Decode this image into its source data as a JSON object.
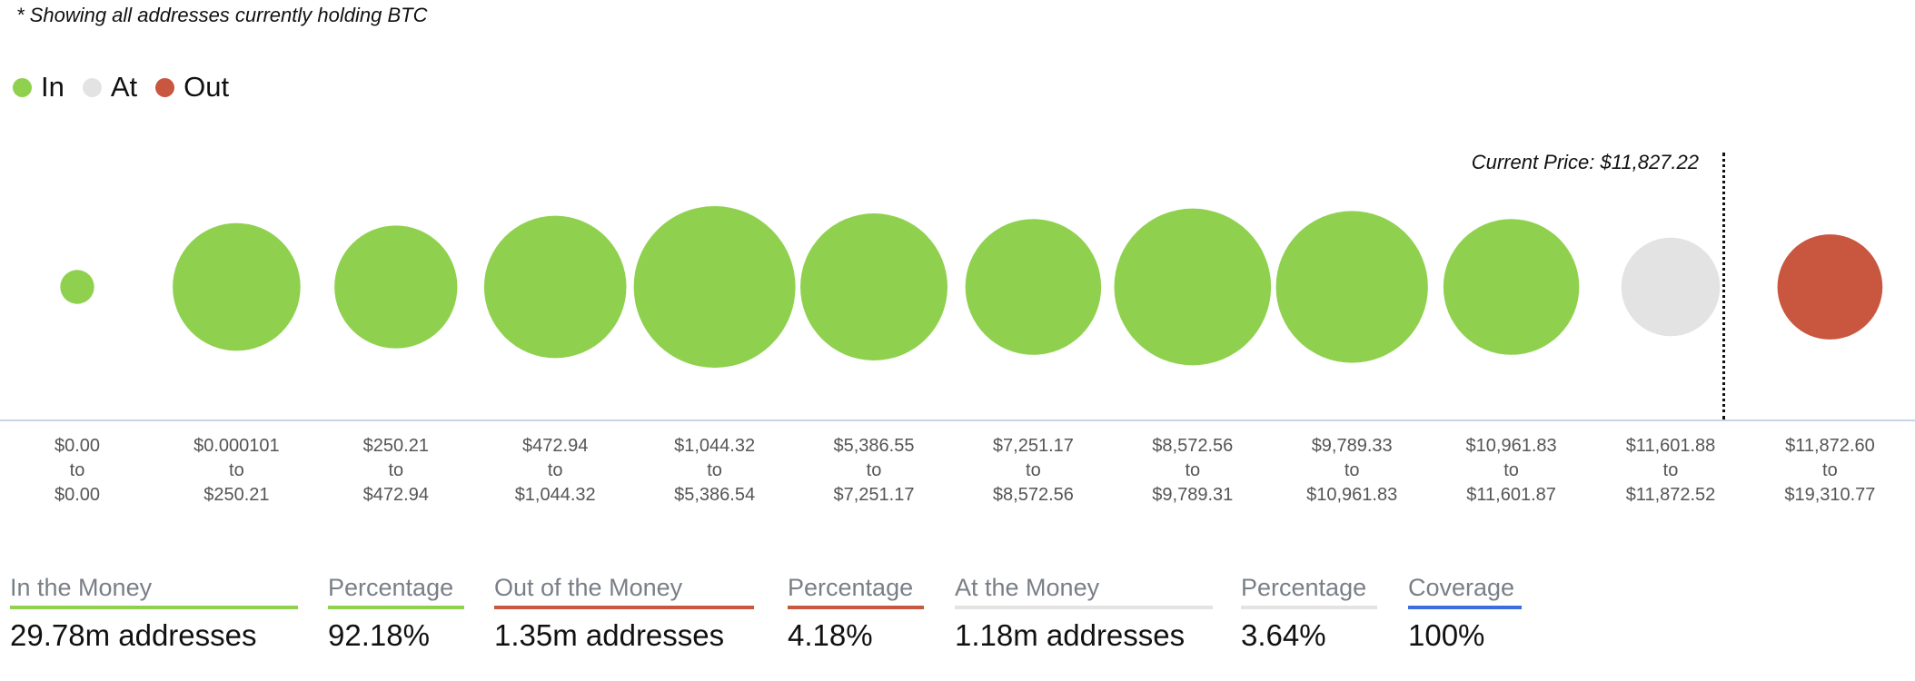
{
  "note": "* Showing all addresses currently holding BTC",
  "legend": [
    {
      "label": "In",
      "color": "#8fd14f"
    },
    {
      "label": "At",
      "color": "#e3e3e3"
    },
    {
      "label": "Out",
      "color": "#c9573f"
    }
  ],
  "current_price_label": "Current Price: $11,827.22",
  "chart_data": {
    "type": "bubble",
    "title": "",
    "note": "* Showing all addresses currently holding BTC",
    "current_price": "Current Price: $11,827.22",
    "size_unit": "relative bubble diameter (largest = 1.0)",
    "categories": [
      {
        "from": "$0.00",
        "to_word": "to",
        "to": "$0.00",
        "status": "In",
        "relative_size": 0.21
      },
      {
        "from": "$0.000101",
        "to_word": "to",
        "to": "$250.21",
        "status": "In",
        "relative_size": 0.79
      },
      {
        "from": "$250.21",
        "to_word": "to",
        "to": "$472.94",
        "status": "In",
        "relative_size": 0.76
      },
      {
        "from": "$472.94",
        "to_word": "to",
        "to": "$1,044.32",
        "status": "In",
        "relative_size": 0.88
      },
      {
        "from": "$1,044.32",
        "to_word": "to",
        "to": "$5,386.54",
        "status": "In",
        "relative_size": 1.0
      },
      {
        "from": "$5,386.55",
        "to_word": "to",
        "to": "$7,251.17",
        "status": "In",
        "relative_size": 0.91
      },
      {
        "from": "$7,251.17",
        "to_word": "to",
        "to": "$8,572.56",
        "status": "In",
        "relative_size": 0.84
      },
      {
        "from": "$8,572.56",
        "to_word": "to",
        "to": "$9,789.31",
        "status": "In",
        "relative_size": 0.97
      },
      {
        "from": "$9,789.33",
        "to_word": "to",
        "to": "$10,961.83",
        "status": "In",
        "relative_size": 0.94
      },
      {
        "from": "$10,961.83",
        "to_word": "to",
        "to": "$11,601.87",
        "status": "In",
        "relative_size": 0.84
      },
      {
        "from": "$11,601.88",
        "to_word": "to",
        "to": "$11,872.52",
        "status": "At",
        "relative_size": 0.61
      },
      {
        "from": "$11,872.60",
        "to_word": "to",
        "to": "$19,310.77",
        "status": "Out",
        "relative_size": 0.65
      }
    ]
  },
  "stats": [
    {
      "label": "In the Money",
      "value": "29.78m addresses",
      "color": "#8fd14f"
    },
    {
      "label": "Percentage",
      "value": "92.18%",
      "color": "#8fd14f"
    },
    {
      "label": "Out of the Money",
      "value": "1.35m addresses",
      "color": "#c9573f"
    },
    {
      "label": "Percentage",
      "value": "4.18%",
      "color": "#c9573f"
    },
    {
      "label": "At the Money",
      "value": "1.18m addresses",
      "color": "#e3e3e3"
    },
    {
      "label": "Percentage",
      "value": "3.64%",
      "color": "#e3e3e3"
    },
    {
      "label": "Coverage",
      "value": "100%",
      "color": "#3b6fe0"
    }
  ]
}
